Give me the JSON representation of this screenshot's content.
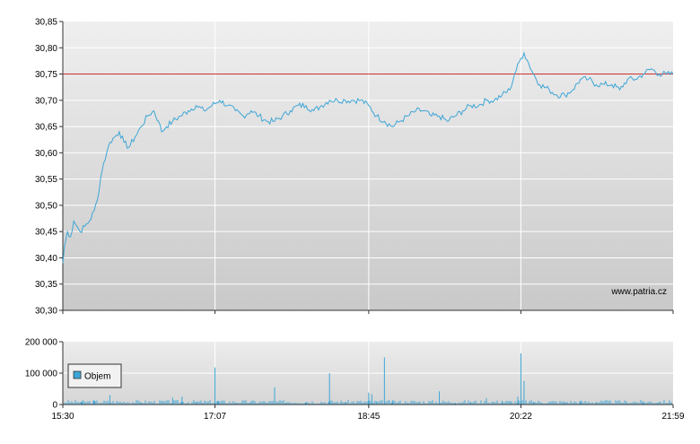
{
  "chart_data": [
    {
      "type": "line",
      "title": "",
      "xlabel": "",
      "ylabel": "",
      "ylim": [
        30.3,
        30.85
      ],
      "yticks": [
        "30,30",
        "30,35",
        "30,40",
        "30,45",
        "30,50",
        "30,55",
        "30,60",
        "30,65",
        "30,70",
        "30,75",
        "30,80",
        "30,85"
      ],
      "x_time_range": [
        "15:30",
        "21:59"
      ],
      "reference_line": {
        "value": 30.75,
        "color": "#d03030"
      },
      "watermark": "www.patria.cz",
      "line_color": "#3ea6d6",
      "grid": true,
      "series": [
        {
          "points": [
            [
              "15:30",
              30.39
            ],
            [
              "15:31",
              30.42
            ],
            [
              "15:33",
              30.45
            ],
            [
              "15:35",
              30.44
            ],
            [
              "15:37",
              30.47
            ],
            [
              "15:39",
              30.46
            ],
            [
              "15:41",
              30.45
            ],
            [
              "15:44",
              30.46
            ],
            [
              "15:47",
              30.47
            ],
            [
              "15:50",
              30.49
            ],
            [
              "15:52",
              30.51
            ],
            [
              "15:54",
              30.55
            ],
            [
              "15:56",
              30.58
            ],
            [
              "15:58",
              30.6
            ],
            [
              "16:00",
              30.62
            ],
            [
              "16:03",
              30.63
            ],
            [
              "16:06",
              30.64
            ],
            [
              "16:09",
              30.62
            ],
            [
              "16:12",
              30.61
            ],
            [
              "16:16",
              30.63
            ],
            [
              "16:20",
              30.65
            ],
            [
              "16:24",
              30.67
            ],
            [
              "16:28",
              30.68
            ],
            [
              "16:31",
              30.66
            ],
            [
              "16:33",
              30.64
            ],
            [
              "16:36",
              30.65
            ],
            [
              "16:40",
              30.66
            ],
            [
              "16:45",
              30.67
            ],
            [
              "16:50",
              30.68
            ],
            [
              "16:55",
              30.69
            ],
            [
              "17:00",
              30.68
            ],
            [
              "17:05",
              30.69
            ],
            [
              "17:10",
              30.7
            ],
            [
              "17:15",
              30.69
            ],
            [
              "17:20",
              30.68
            ],
            [
              "17:25",
              30.67
            ],
            [
              "17:30",
              30.68
            ],
            [
              "17:35",
              30.67
            ],
            [
              "17:40",
              30.66
            ],
            [
              "17:45",
              30.66
            ],
            [
              "17:50",
              30.67
            ],
            [
              "17:55",
              30.68
            ],
            [
              "18:00",
              30.69
            ],
            [
              "18:05",
              30.69
            ],
            [
              "18:10",
              30.68
            ],
            [
              "18:15",
              30.69
            ],
            [
              "18:20",
              30.7
            ],
            [
              "18:25",
              30.7
            ],
            [
              "18:30",
              30.7
            ],
            [
              "18:35",
              30.7
            ],
            [
              "18:40",
              30.7
            ],
            [
              "18:45",
              30.69
            ],
            [
              "18:50",
              30.67
            ],
            [
              "18:55",
              30.66
            ],
            [
              "19:00",
              30.65
            ],
            [
              "19:05",
              30.66
            ],
            [
              "19:10",
              30.67
            ],
            [
              "19:15",
              30.68
            ],
            [
              "19:20",
              30.68
            ],
            [
              "19:25",
              30.67
            ],
            [
              "19:30",
              30.67
            ],
            [
              "19:35",
              30.66
            ],
            [
              "19:40",
              30.67
            ],
            [
              "19:45",
              30.68
            ],
            [
              "19:50",
              30.69
            ],
            [
              "19:55",
              30.69
            ],
            [
              "20:00",
              30.7
            ],
            [
              "20:05",
              30.7
            ],
            [
              "20:10",
              30.71
            ],
            [
              "20:15",
              30.72
            ],
            [
              "20:18",
              30.75
            ],
            [
              "20:22",
              30.78
            ],
            [
              "20:24",
              30.79
            ],
            [
              "20:27",
              30.77
            ],
            [
              "20:30",
              30.75
            ],
            [
              "20:34",
              30.73
            ],
            [
              "20:40",
              30.72
            ],
            [
              "20:45",
              30.71
            ],
            [
              "20:50",
              30.71
            ],
            [
              "20:55",
              30.72
            ],
            [
              "21:00",
              30.74
            ],
            [
              "21:05",
              30.74
            ],
            [
              "21:10",
              30.73
            ],
            [
              "21:15",
              30.73
            ],
            [
              "21:20",
              30.73
            ],
            [
              "21:25",
              30.72
            ],
            [
              "21:30",
              30.74
            ],
            [
              "21:35",
              30.74
            ],
            [
              "21:40",
              30.75
            ],
            [
              "21:45",
              30.76
            ],
            [
              "21:50",
              30.75
            ],
            [
              "21:55",
              30.75
            ],
            [
              "21:59",
              30.75
            ]
          ]
        }
      ]
    },
    {
      "type": "bar",
      "title": "",
      "ylim": [
        0,
        200000
      ],
      "yticks": [
        "0",
        "100 000",
        "200 000"
      ],
      "xticks": [
        "15:30",
        "17:07",
        "18:45",
        "20:22",
        "21:59"
      ],
      "legend": {
        "label": "Objem",
        "position": "left",
        "swatch_color": "#3ea6d6"
      },
      "bar_color": "#3ea6d6",
      "series": [
        {
          "name": "Objem",
          "points": [
            [
              "15:42",
              8000
            ],
            [
              "15:50",
              12000
            ],
            [
              "16:00",
              30000
            ],
            [
              "16:10",
              5000
            ],
            [
              "16:20",
              6000
            ],
            [
              "16:33",
              10000
            ],
            [
              "16:40",
              22000
            ],
            [
              "16:46",
              25000
            ],
            [
              "16:55",
              6000
            ],
            [
              "17:07",
              118000
            ],
            [
              "17:09",
              12000
            ],
            [
              "17:20",
              5000
            ],
            [
              "17:30",
              8000
            ],
            [
              "17:45",
              55000
            ],
            [
              "17:52",
              6000
            ],
            [
              "18:05",
              7000
            ],
            [
              "18:20",
              100000
            ],
            [
              "18:30",
              8000
            ],
            [
              "18:40",
              6000
            ],
            [
              "18:45",
              38000
            ],
            [
              "18:47",
              33000
            ],
            [
              "18:50",
              8000
            ],
            [
              "18:55",
              150000
            ],
            [
              "19:00",
              10000
            ],
            [
              "19:10",
              6000
            ],
            [
              "19:20",
              8000
            ],
            [
              "19:30",
              42000
            ],
            [
              "19:40",
              6000
            ],
            [
              "19:50",
              8000
            ],
            [
              "20:00",
              20000
            ],
            [
              "20:10",
              12000
            ],
            [
              "20:15",
              10000
            ],
            [
              "20:20",
              25000
            ],
            [
              "20:22",
              163000
            ],
            [
              "20:24",
              75000
            ],
            [
              "20:30",
              8000
            ],
            [
              "20:40",
              6000
            ],
            [
              "20:50",
              5000
            ],
            [
              "21:00",
              8000
            ],
            [
              "21:10",
              6000
            ],
            [
              "21:20",
              5000
            ],
            [
              "21:30",
              4000
            ],
            [
              "21:40",
              6000
            ],
            [
              "21:50",
              8000
            ],
            [
              "21:58",
              5000
            ]
          ]
        }
      ]
    }
  ]
}
